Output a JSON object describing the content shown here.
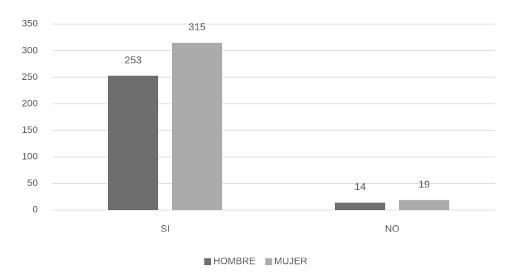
{
  "chart_data": {
    "type": "bar",
    "categories": [
      "SI",
      "NO"
    ],
    "series": [
      {
        "name": "HOMBRE",
        "color": "#6e6e6e",
        "values": [
          253,
          14
        ]
      },
      {
        "name": "MUJER",
        "color": "#ababab",
        "values": [
          315,
          19
        ]
      }
    ],
    "ylim": [
      0,
      350
    ],
    "yticks": [
      0,
      50,
      100,
      150,
      200,
      250,
      300,
      350
    ],
    "grid": true,
    "legend": "bottom"
  }
}
